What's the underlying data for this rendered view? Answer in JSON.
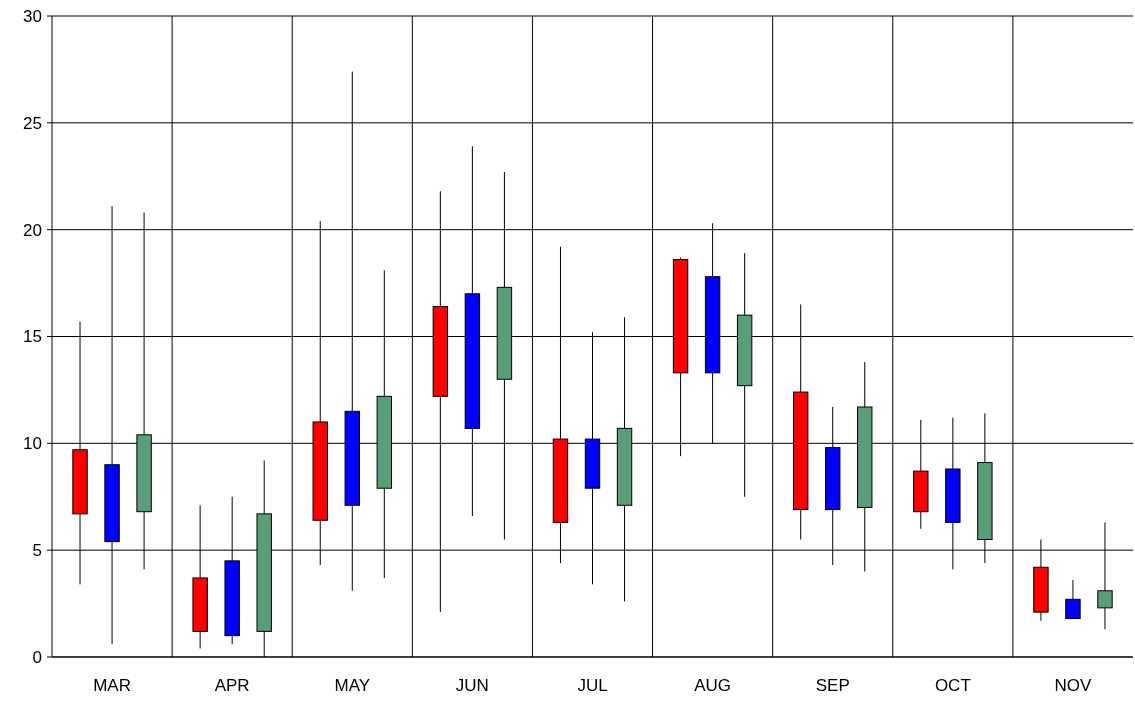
{
  "chart_data": {
    "type": "candlestick",
    "categories": [
      "MAR",
      "APR",
      "MAY",
      "JUN",
      "JUL",
      "AUG",
      "SEP",
      "OCT",
      "NOV"
    ],
    "ylim": [
      0,
      30
    ],
    "yticks": [
      0,
      5,
      10,
      15,
      20,
      25,
      30
    ],
    "grid": true,
    "series": [
      {
        "color": "#ff0000",
        "ohlc": [
          [
            6.7,
            15.7,
            3.4,
            9.7
          ],
          [
            1.2,
            7.1,
            0.4,
            3.7
          ],
          [
            6.4,
            20.4,
            4.3,
            11.0
          ],
          [
            12.2,
            21.8,
            2.1,
            16.4
          ],
          [
            6.3,
            19.2,
            4.4,
            10.2
          ],
          [
            13.3,
            18.7,
            9.4,
            18.6
          ],
          [
            6.9,
            16.5,
            5.5,
            12.4
          ],
          [
            6.8,
            11.1,
            6.0,
            8.7
          ],
          [
            2.1,
            5.5,
            1.7,
            4.2
          ]
        ]
      },
      {
        "color": "#0000ff",
        "ohlc": [
          [
            5.4,
            21.1,
            0.6,
            9.0
          ],
          [
            1.0,
            7.5,
            0.6,
            4.5
          ],
          [
            7.1,
            27.4,
            3.1,
            11.5
          ],
          [
            10.7,
            23.9,
            6.6,
            17.0
          ],
          [
            7.9,
            15.2,
            3.4,
            10.2
          ],
          [
            13.3,
            20.3,
            10.0,
            17.8
          ],
          [
            6.9,
            11.7,
            4.3,
            9.8
          ],
          [
            6.3,
            11.2,
            4.1,
            8.8
          ],
          [
            1.8,
            3.6,
            1.8,
            2.7
          ]
        ]
      },
      {
        "color": "#5a9e78",
        "ohlc": [
          [
            6.8,
            20.8,
            4.1,
            10.4
          ],
          [
            1.2,
            9.2,
            0.0,
            6.7
          ],
          [
            7.9,
            18.1,
            3.7,
            12.2
          ],
          [
            13.0,
            22.7,
            5.5,
            17.3
          ],
          [
            7.1,
            15.9,
            2.6,
            10.7
          ],
          [
            12.7,
            18.9,
            7.5,
            16.0
          ],
          [
            7.0,
            13.8,
            4.0,
            11.7
          ],
          [
            5.5,
            11.4,
            4.4,
            9.1
          ],
          [
            2.3,
            6.3,
            1.3,
            3.1
          ]
        ]
      }
    ]
  }
}
